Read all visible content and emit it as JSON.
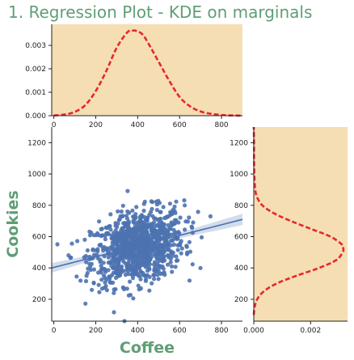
{
  "chart_data": {
    "title": "1. Regression Plot - KDE on marginals",
    "type": "scatter",
    "xlabel": "Coffee",
    "ylabel": "Cookies",
    "colors": {
      "title": "#5f9e74",
      "points": "#4c72b0",
      "kde": "#e8272a",
      "marginal_bg": "#f5deb3",
      "axis": "#222222"
    },
    "joint": {
      "xlim": [
        -10,
        900
      ],
      "ylim": [
        60,
        1300
      ],
      "xticks": [
        "0",
        "200",
        "400",
        "600",
        "800"
      ],
      "yticks": [
        "200",
        "400",
        "600",
        "800",
        "1000",
        "1200"
      ],
      "regression_line": {
        "x": [
          -10,
          900
        ],
        "y": [
          400,
          710
        ]
      },
      "points_summary": {
        "n": 1000,
        "x_mean": 400,
        "x_sd": 110,
        "y_mean": 535,
        "y_sd": 118,
        "corr": 0.28
      }
    },
    "marginal_x": {
      "xlim": [
        -10,
        900
      ],
      "ylim": [
        0,
        0.0039
      ],
      "yticks": [
        "0.000",
        "0.001",
        "0.002",
        "0.003"
      ],
      "xticks": [
        "0",
        "200",
        "400",
        "600",
        "800"
      ],
      "kde": {
        "x": [
          0,
          50,
          100,
          150,
          200,
          250,
          300,
          350,
          375,
          400,
          425,
          450,
          500,
          550,
          600,
          650,
          700,
          750,
          800,
          850,
          900
        ],
        "y": [
          1e-05,
          5e-05,
          0.00016,
          0.00045,
          0.00105,
          0.0019,
          0.0029,
          0.00355,
          0.00363,
          0.0036,
          0.00345,
          0.0031,
          0.0023,
          0.0015,
          0.0008,
          0.0004,
          0.00018,
          8e-05,
          3e-05,
          1e-05,
          0.0
        ]
      }
    },
    "marginal_y": {
      "xlim": [
        0,
        0.0033
      ],
      "ylim": [
        60,
        1300
      ],
      "xticks": [
        "0.000",
        "0.002"
      ],
      "yticks": [
        "200",
        "400",
        "600",
        "800",
        "1000",
        "1200"
      ],
      "kde": {
        "y": [
          100,
          150,
          200,
          250,
          300,
          350,
          400,
          450,
          500,
          525,
          550,
          600,
          650,
          700,
          750,
          800,
          850,
          900,
          1000,
          1100,
          1200,
          1300
        ],
        "x": [
          0.0,
          3e-05,
          0.00012,
          0.00035,
          0.0008,
          0.0015,
          0.0023,
          0.0029,
          0.00313,
          0.00315,
          0.0031,
          0.0027,
          0.002,
          0.0013,
          0.0007,
          0.0003,
          0.00012,
          5e-05,
          2e-05,
          1e-05,
          1e-05,
          0.0
        ]
      }
    }
  }
}
